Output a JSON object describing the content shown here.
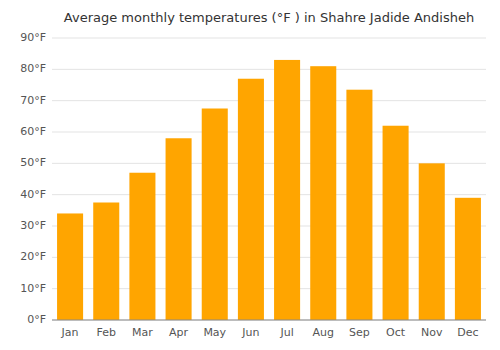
{
  "chart_data": {
    "type": "bar",
    "title": "Average monthly temperatures (°F ) in Shahre Jadide Andisheh",
    "categories": [
      "Jan",
      "Feb",
      "Mar",
      "Apr",
      "May",
      "Jun",
      "Jul",
      "Aug",
      "Sep",
      "Oct",
      "Nov",
      "Dec"
    ],
    "values": [
      34,
      37.5,
      47,
      58,
      67.5,
      77,
      83,
      81,
      73.5,
      62,
      50,
      39
    ],
    "color": "#FFA500",
    "ylim": [
      0,
      90
    ],
    "yticks": [
      {
        "value": 0,
        "label": "0°F"
      },
      {
        "value": 10,
        "label": "10°F"
      },
      {
        "value": 20,
        "label": "20°F"
      },
      {
        "value": 30,
        "label": "30°F"
      },
      {
        "value": 40,
        "label": "40°F"
      },
      {
        "value": 50,
        "label": "50°F"
      },
      {
        "value": 60,
        "label": "60°F"
      },
      {
        "value": 70,
        "label": "70°F"
      },
      {
        "value": 80,
        "label": "80°F"
      },
      {
        "value": 90,
        "label": "90°F"
      }
    ],
    "grid": true
  }
}
